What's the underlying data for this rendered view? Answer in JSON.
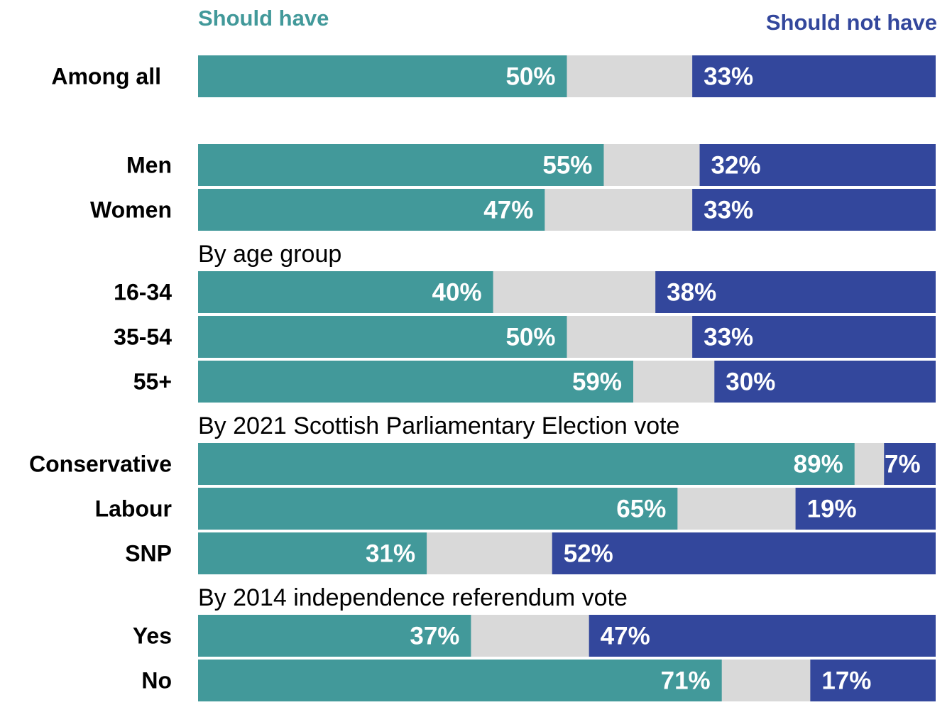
{
  "colors": {
    "should_have": "#42999A",
    "should_not_have": "#33479C",
    "neither": "#D9D9D9",
    "label_text": "#FFFFFF"
  },
  "legend": {
    "should_have": "Should have",
    "should_not_have": "Should not have"
  },
  "chart_data": {
    "type": "bar",
    "orientation": "horizontal",
    "stacked": true,
    "series": [
      {
        "name": "Should have",
        "values": [
          50,
          55,
          47,
          40,
          50,
          59,
          89,
          65,
          31,
          37,
          71
        ]
      },
      {
        "name": "Should not have",
        "values": [
          33,
          32,
          33,
          38,
          33,
          30,
          7,
          19,
          52,
          47,
          17
        ]
      }
    ],
    "categories": [
      "Among all",
      "Men",
      "Women",
      "16-34",
      "35-54",
      "55+",
      "Conservative",
      "Labour",
      "SNP",
      "Yes",
      "No"
    ],
    "data_labels": [
      "50%",
      "55%",
      "47%",
      "40%",
      "50%",
      "59%",
      "89%",
      "65%",
      "31%",
      "37%",
      "71%"
    ],
    "data_labels_not": [
      "33%",
      "32%",
      "33%",
      "38%",
      "33%",
      "30%",
      "7%",
      "19%",
      "52%",
      "47%",
      "17%"
    ],
    "groups": [
      {
        "label": "",
        "rows": [
          0
        ]
      },
      {
        "label": "",
        "rows": [
          1,
          2
        ]
      },
      {
        "label": "By age group",
        "rows": [
          3,
          4,
          5
        ]
      },
      {
        "label": "By 2021 Scottish Parliamentary Election vote",
        "rows": [
          6,
          7,
          8
        ]
      },
      {
        "label": "By 2014 independence referendum vote",
        "rows": [
          9,
          10
        ]
      }
    ],
    "xlim": [
      0,
      100
    ],
    "grid": false,
    "legend_position": "top"
  }
}
